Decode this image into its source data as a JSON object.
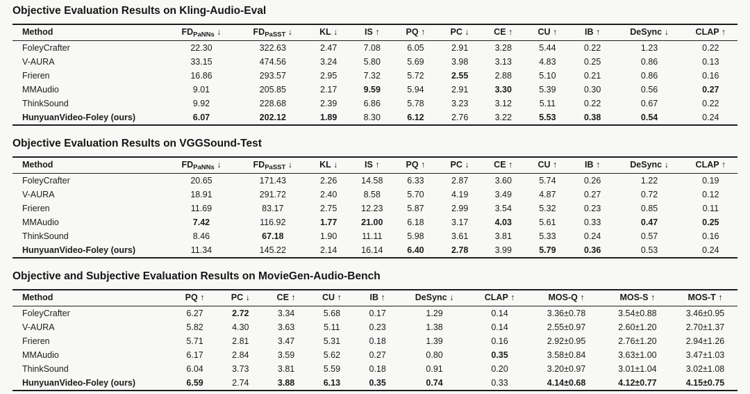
{
  "colors": {
    "background": "#f8f8f6",
    "text": "#1b1b1b",
    "rule": "#1c1c1c"
  },
  "tables": [
    {
      "title": "Objective Evaluation Results on Kling-Audio-Eval",
      "columns": [
        {
          "label": "Method"
        },
        {
          "label": "FD",
          "sub": "PaNNs",
          "arrow": "↓"
        },
        {
          "label": "FD",
          "sub": "PaSST",
          "arrow": "↓"
        },
        {
          "label": "KL",
          "arrow": "↓"
        },
        {
          "label": "IS",
          "arrow": "↑"
        },
        {
          "label": "PQ",
          "arrow": "↑"
        },
        {
          "label": "PC",
          "arrow": "↓"
        },
        {
          "label": "CE",
          "arrow": "↑"
        },
        {
          "label": "CU",
          "arrow": "↑"
        },
        {
          "label": "IB",
          "arrow": "↑"
        },
        {
          "label": "DeSync",
          "arrow": "↓"
        },
        {
          "label": "CLAP",
          "arrow": "↑"
        }
      ],
      "rows": [
        {
          "method": "FoleyCrafter",
          "bold_method": false,
          "values": [
            "22.30",
            "322.63",
            "2.47",
            "7.08",
            "6.05",
            "2.91",
            "3.28",
            "5.44",
            "0.22",
            "1.23",
            "0.22"
          ],
          "bold": []
        },
        {
          "method": "V-AURA",
          "bold_method": false,
          "values": [
            "33.15",
            "474.56",
            "3.24",
            "5.80",
            "5.69",
            "3.98",
            "3.13",
            "4.83",
            "0.25",
            "0.86",
            "0.13"
          ],
          "bold": []
        },
        {
          "method": "Frieren",
          "bold_method": false,
          "values": [
            "16.86",
            "293.57",
            "2.95",
            "7.32",
            "5.72",
            "2.55",
            "2.88",
            "5.10",
            "0.21",
            "0.86",
            "0.16"
          ],
          "bold": [
            5
          ]
        },
        {
          "method": "MMAudio",
          "bold_method": false,
          "values": [
            "9.01",
            "205.85",
            "2.17",
            "9.59",
            "5.94",
            "2.91",
            "3.30",
            "5.39",
            "0.30",
            "0.56",
            "0.27"
          ],
          "bold": [
            3,
            6,
            10
          ]
        },
        {
          "method": "ThinkSound",
          "bold_method": false,
          "values": [
            "9.92",
            "228.68",
            "2.39",
            "6.86",
            "5.78",
            "3.23",
            "3.12",
            "5.11",
            "0.22",
            "0.67",
            "0.22"
          ],
          "bold": []
        },
        {
          "method": "HunyuanVideo-Foley (ours)",
          "bold_method": true,
          "values": [
            "6.07",
            "202.12",
            "1.89",
            "8.30",
            "6.12",
            "2.76",
            "3.22",
            "5.53",
            "0.38",
            "0.54",
            "0.24"
          ],
          "bold": [
            0,
            1,
            2,
            4,
            7,
            8,
            9
          ]
        }
      ]
    },
    {
      "title": "Objective Evaluation Results on VGGSound-Test",
      "columns": [
        {
          "label": "Method"
        },
        {
          "label": "FD",
          "sub": "PaNNs",
          "arrow": "↓"
        },
        {
          "label": "FD",
          "sub": "PaSST",
          "arrow": "↓"
        },
        {
          "label": "KL",
          "arrow": "↓"
        },
        {
          "label": "IS",
          "arrow": "↑"
        },
        {
          "label": "PQ",
          "arrow": "↑"
        },
        {
          "label": "PC",
          "arrow": "↓"
        },
        {
          "label": "CE",
          "arrow": "↑"
        },
        {
          "label": "CU",
          "arrow": "↑"
        },
        {
          "label": "IB",
          "arrow": "↑"
        },
        {
          "label": "DeSync",
          "arrow": "↓"
        },
        {
          "label": "CLAP",
          "arrow": "↑"
        }
      ],
      "rows": [
        {
          "method": "FoleyCrafter",
          "bold_method": false,
          "values": [
            "20.65",
            "171.43",
            "2.26",
            "14.58",
            "6.33",
            "2.87",
            "3.60",
            "5.74",
            "0.26",
            "1.22",
            "0.19"
          ],
          "bold": []
        },
        {
          "method": "V-AURA",
          "bold_method": false,
          "values": [
            "18.91",
            "291.72",
            "2.40",
            "8.58",
            "5.70",
            "4.19",
            "3.49",
            "4.87",
            "0.27",
            "0.72",
            "0.12"
          ],
          "bold": []
        },
        {
          "method": "Frieren",
          "bold_method": false,
          "values": [
            "11.69",
            "83.17",
            "2.75",
            "12.23",
            "5.87",
            "2.99",
            "3.54",
            "5.32",
            "0.23",
            "0.85",
            "0.11"
          ],
          "bold": []
        },
        {
          "method": "MMAudio",
          "bold_method": false,
          "values": [
            "7.42",
            "116.92",
            "1.77",
            "21.00",
            "6.18",
            "3.17",
            "4.03",
            "5.61",
            "0.33",
            "0.47",
            "0.25"
          ],
          "bold": [
            0,
            2,
            3,
            6,
            9,
            10
          ]
        },
        {
          "method": "ThinkSound",
          "bold_method": false,
          "values": [
            "8.46",
            "67.18",
            "1.90",
            "11.11",
            "5.98",
            "3.61",
            "3.81",
            "5.33",
            "0.24",
            "0.57",
            "0.16"
          ],
          "bold": [
            1
          ]
        },
        {
          "method": "HunyuanVideo-Foley (ours)",
          "bold_method": true,
          "values": [
            "11.34",
            "145.22",
            "2.14",
            "16.14",
            "6.40",
            "2.78",
            "3.99",
            "5.79",
            "0.36",
            "0.53",
            "0.24"
          ],
          "bold": [
            4,
            5,
            7,
            8
          ]
        }
      ]
    },
    {
      "title": "Objective and Subjective Evaluation Results on MovieGen-Audio-Bench",
      "columns": [
        {
          "label": "Method"
        },
        {
          "label": "PQ",
          "arrow": "↑"
        },
        {
          "label": "PC",
          "arrow": "↓"
        },
        {
          "label": "CE",
          "arrow": "↑"
        },
        {
          "label": "CU",
          "arrow": "↑"
        },
        {
          "label": "IB",
          "arrow": "↑"
        },
        {
          "label": "DeSync",
          "arrow": "↓"
        },
        {
          "label": "CLAP",
          "arrow": "↑"
        },
        {
          "label": "MOS-Q",
          "arrow": "↑"
        },
        {
          "label": "MOS-S",
          "arrow": "↑"
        },
        {
          "label": "MOS-T",
          "arrow": "↑"
        }
      ],
      "rows": [
        {
          "method": "FoleyCrafter",
          "bold_method": false,
          "values": [
            "6.27",
            "2.72",
            "3.34",
            "5.68",
            "0.17",
            "1.29",
            "0.14",
            "3.36±0.78",
            "3.54±0.88",
            "3.46±0.95"
          ],
          "bold": [
            1
          ]
        },
        {
          "method": "V-AURA",
          "bold_method": false,
          "values": [
            "5.82",
            "4.30",
            "3.63",
            "5.11",
            "0.23",
            "1.38",
            "0.14",
            "2.55±0.97",
            "2.60±1.20",
            "2.70±1.37"
          ],
          "bold": []
        },
        {
          "method": "Frieren",
          "bold_method": false,
          "values": [
            "5.71",
            "2.81",
            "3.47",
            "5.31",
            "0.18",
            "1.39",
            "0.16",
            "2.92±0.95",
            "2.76±1.20",
            "2.94±1.26"
          ],
          "bold": []
        },
        {
          "method": "MMAudio",
          "bold_method": false,
          "values": [
            "6.17",
            "2.84",
            "3.59",
            "5.62",
            "0.27",
            "0.80",
            "0.35",
            "3.58±0.84",
            "3.63±1.00",
            "3.47±1.03"
          ],
          "bold": [
            6
          ]
        },
        {
          "method": "ThinkSound",
          "bold_method": false,
          "values": [
            "6.04",
            "3.73",
            "3.81",
            "5.59",
            "0.18",
            "0.91",
            "0.20",
            "3.20±0.97",
            "3.01±1.04",
            "3.02±1.08"
          ],
          "bold": []
        },
        {
          "method": "HunyuanVideo-Foley (ours)",
          "bold_method": true,
          "values": [
            "6.59",
            "2.74",
            "3.88",
            "6.13",
            "0.35",
            "0.74",
            "0.33",
            "4.14±0.68",
            "4.12±0.77",
            "4.15±0.75"
          ],
          "bold": [
            0,
            2,
            3,
            4,
            5,
            7,
            8,
            9
          ]
        }
      ]
    }
  ]
}
